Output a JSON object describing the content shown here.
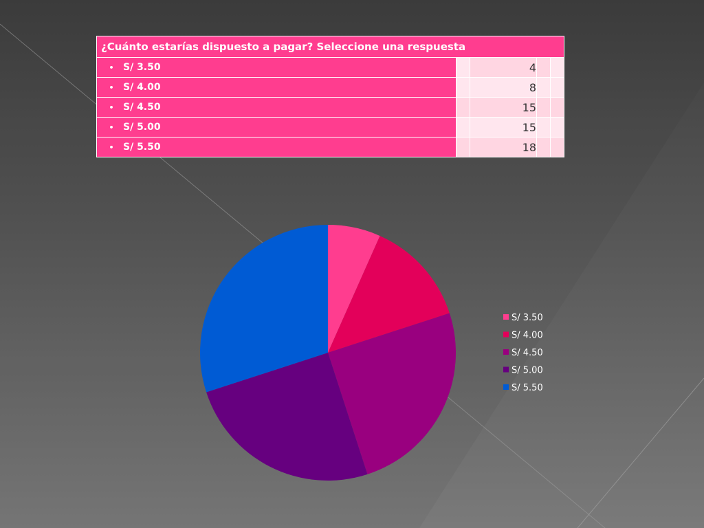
{
  "table": {
    "question": "¿Cuánto estarías dispuesto a pagar? Seleccione una respuesta",
    "bullet": "•",
    "rows": [
      {
        "label": "S/ 3.50",
        "count": "4"
      },
      {
        "label": "S/ 4.00",
        "count": "8"
      },
      {
        "label": "S/ 4.50",
        "count": "15"
      },
      {
        "label": "S/ 5.00",
        "count": "15"
      },
      {
        "label": "S/ 5.50",
        "count": "18"
      }
    ]
  },
  "chart_data": {
    "type": "pie",
    "categories": [
      "S/ 3.50",
      "S/ 4.00",
      "S/ 4.50",
      "S/ 5.00",
      "S/ 5.50"
    ],
    "values": [
      4,
      8,
      15,
      15,
      18
    ],
    "colors": [
      "#ff3d8f",
      "#e3005a",
      "#99007f",
      "#66007f",
      "#005bd4"
    ],
    "start_angle": "12 o'clock",
    "direction": "clockwise",
    "legend_position": "right"
  }
}
